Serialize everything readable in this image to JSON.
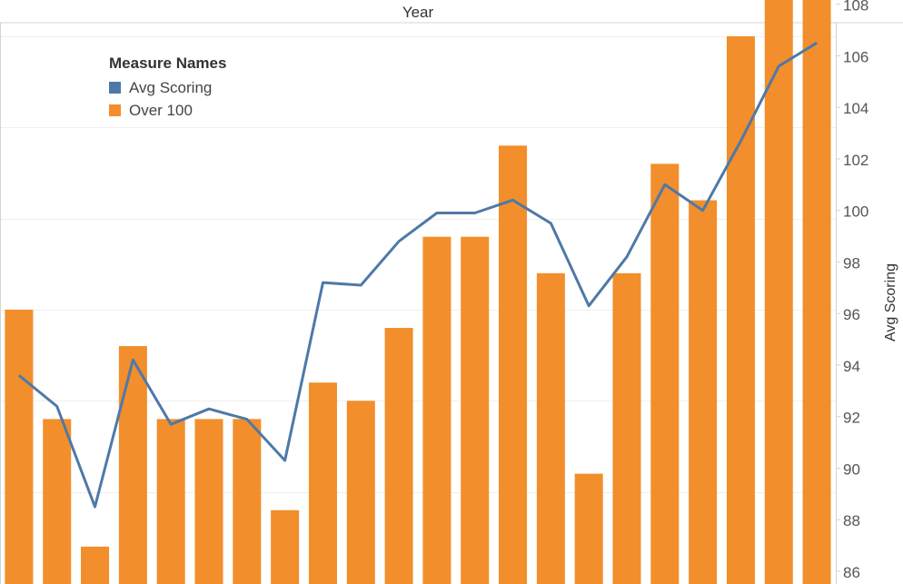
{
  "header": {
    "title": "Year"
  },
  "legend": {
    "title": "Measure Names",
    "items": [
      {
        "label": "Avg Scoring",
        "color": "#4e79a7"
      },
      {
        "label": "Over 100",
        "color": "#f28e2b"
      }
    ]
  },
  "chart_data": {
    "type": "bar+line",
    "x_header": "Year",
    "ylabel": "Avg Scoring",
    "right_axis": {
      "ticks": [
        86,
        88,
        90,
        92,
        94,
        96,
        98,
        100,
        102,
        104,
        106,
        108
      ],
      "ylim": [
        86,
        108.4
      ]
    },
    "grid": true,
    "legend_position": "top-left",
    "series": [
      {
        "name": "Over 100",
        "type": "bar",
        "color": "#f28e2b",
        "values": [
          15,
          9,
          2,
          13,
          9,
          9,
          9,
          4,
          11,
          10,
          14,
          19,
          19,
          24,
          17,
          6,
          17,
          23,
          21,
          30,
          39,
          37
        ]
      },
      {
        "name": "Avg Scoring",
        "type": "line",
        "color": "#4e79a7",
        "values": [
          93.6,
          92.4,
          88.5,
          94.2,
          91.7,
          92.3,
          91.9,
          90.3,
          97.2,
          97.1,
          98.8,
          99.9,
          99.9,
          100.4,
          99.5,
          96.3,
          98.2,
          101.0,
          100.0,
          102.7,
          105.6,
          106.5
        ]
      }
    ]
  }
}
